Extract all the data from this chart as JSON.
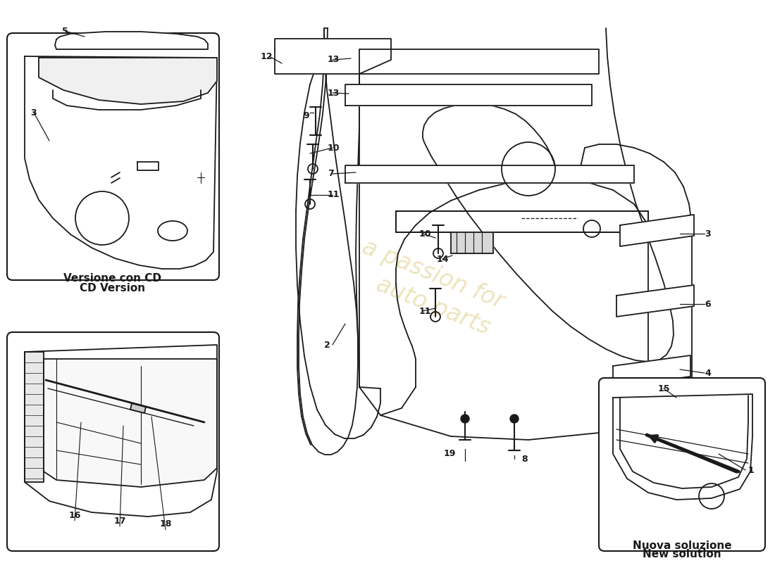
{
  "background_color": "#ffffff",
  "line_color": "#1a1a1a",
  "label_color": "#1a1a1a",
  "watermark_text": "a passion for\nauto parts",
  "watermark_color": "#b8960a",
  "watermark_alpha": 0.3,
  "box1_label": "Versione con CD\nCD Version",
  "box3_label": "Nuova soluzione\nNew solution"
}
